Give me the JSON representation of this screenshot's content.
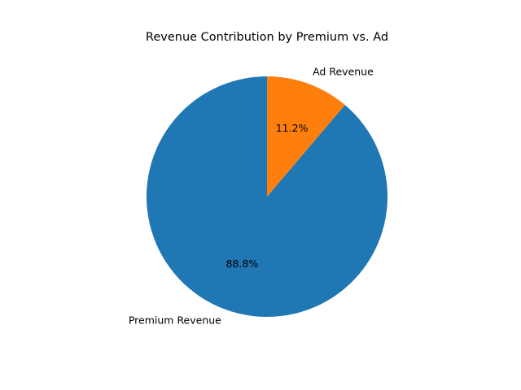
{
  "chart_data": {
    "type": "pie",
    "title": "Revenue Contribution by Premium vs. Ad",
    "slices": [
      {
        "label": "Premium Revenue",
        "value": 88.8,
        "pct_label": "88.8%",
        "color": "#1f77b4"
      },
      {
        "label": "Ad Revenue",
        "value": 11.2,
        "pct_label": "11.2%",
        "color": "#ff7f0e"
      }
    ],
    "start_angle_deg": 90,
    "direction": "counterclockwise",
    "legend": "none"
  }
}
